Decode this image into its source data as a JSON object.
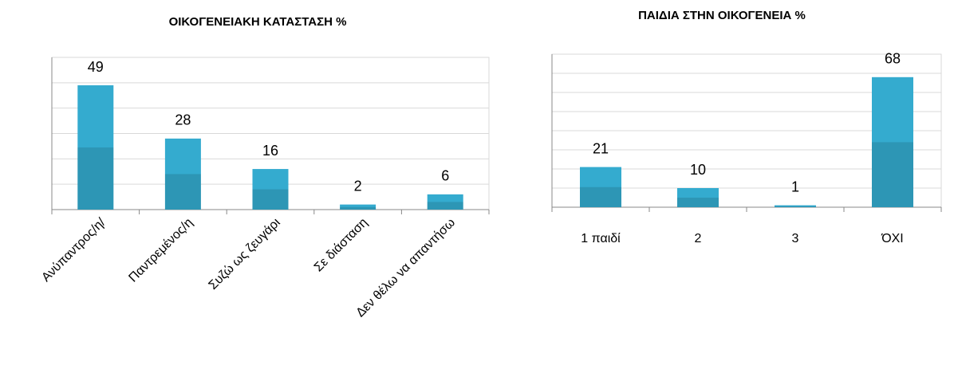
{
  "chart_data": [
    {
      "type": "bar",
      "title": "ΟΙΚΟΓΕΝΕΙΑΚΗ ΚΑΤΑΣΤΑΣΗ %",
      "categories": [
        "Ανύπαντρος/η/",
        "Παντρεμένος/η",
        "Συζώ ως ζευγάρι",
        "Σε διάσταση",
        "Δεν θέλω να απαντήσω"
      ],
      "values": [
        49,
        28,
        16,
        2,
        6
      ],
      "color": "#34abcf",
      "ylim": [
        0,
        60
      ],
      "yticks": [
        0,
        10,
        20,
        30,
        40,
        50,
        60
      ],
      "grid": true
    },
    {
      "type": "bar",
      "title": "ΠΑΙΔΙΑ ΣΤΗΝ ΟΙΚΟΓΕΝΕΙΑ %",
      "categories": [
        "1 παιδί",
        "2",
        "3",
        "ΌΧΙ"
      ],
      "values": [
        21,
        10,
        1,
        68
      ],
      "color": "#34abcf",
      "ylim": [
        0,
        80
      ],
      "yticks": [
        0,
        10,
        20,
        30,
        40,
        50,
        60,
        70,
        80
      ],
      "grid": true
    }
  ]
}
